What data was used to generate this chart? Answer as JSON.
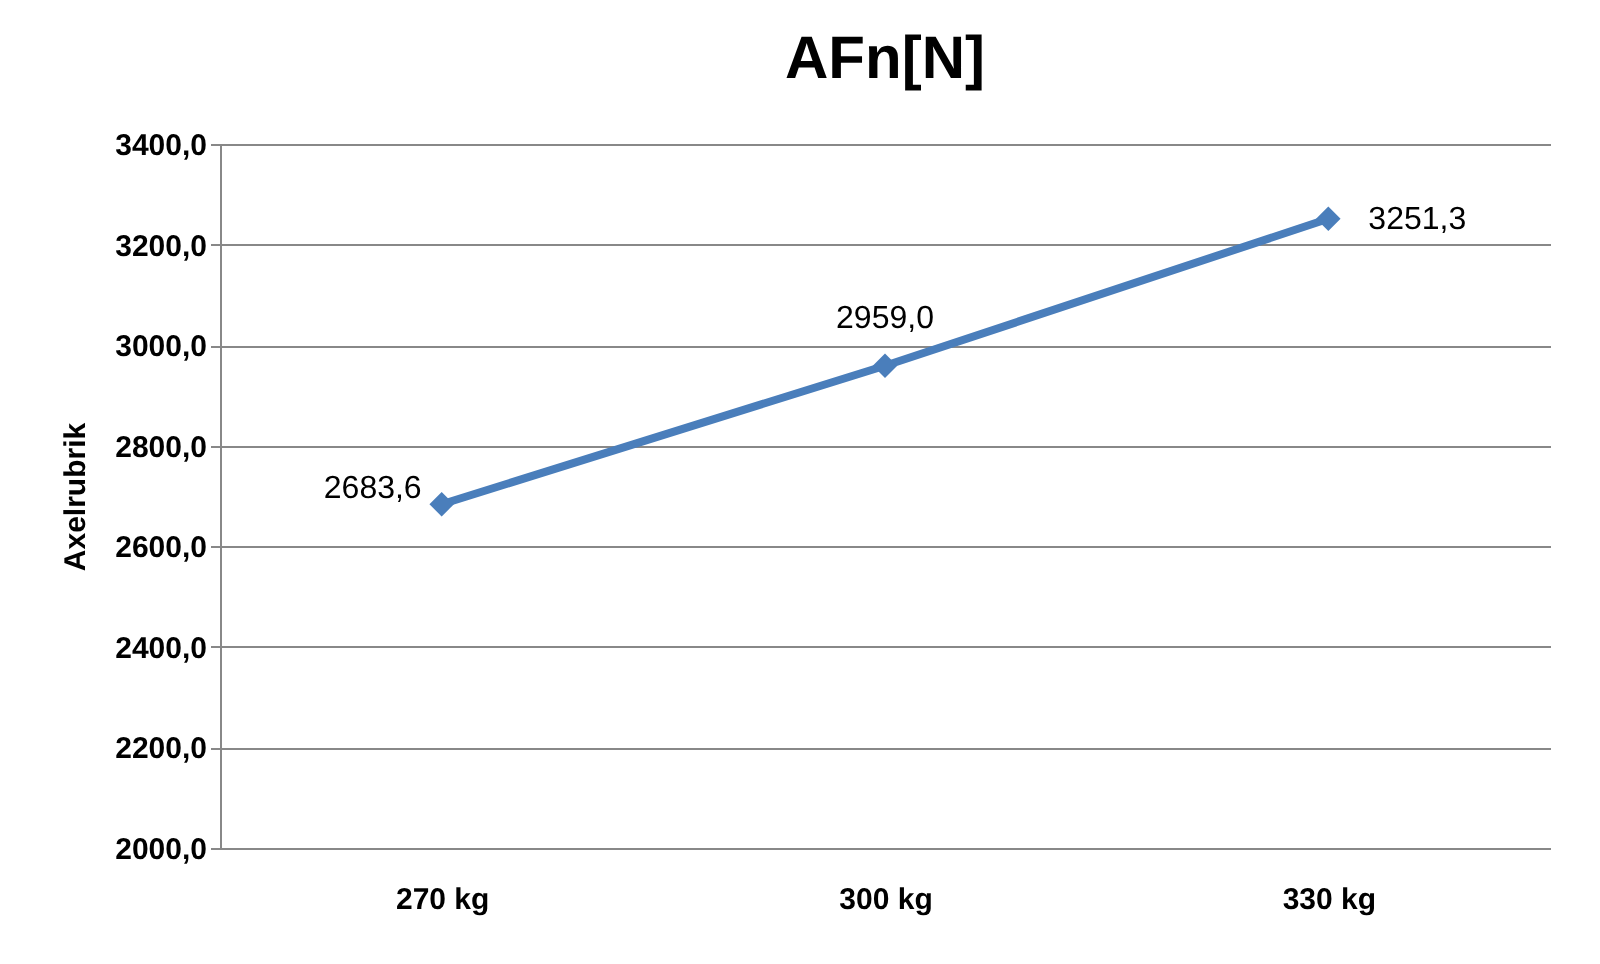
{
  "chart_data": {
    "type": "line",
    "title": "AFn[N]",
    "ylabel": "Axelrubrik",
    "categories": [
      "270 kg",
      "300 kg",
      "330 kg"
    ],
    "series": [
      {
        "color": "#4a7ebb",
        "values": [
          2683.6,
          2959.0,
          3251.3
        ]
      }
    ],
    "value_labels": [
      "2683,6",
      "2959,0",
      "3251,3"
    ],
    "ylim": [
      2000,
      3400
    ],
    "yticks": [
      {
        "value": 2000,
        "label": "2000,0"
      },
      {
        "value": 2200,
        "label": "2200,0"
      },
      {
        "value": 2400,
        "label": "2400,0"
      },
      {
        "value": 2600,
        "label": "2600,0"
      },
      {
        "value": 2800,
        "label": "2800,0"
      },
      {
        "value": 3000,
        "label": "3000,0"
      },
      {
        "value": 3200,
        "label": "3200,0"
      },
      {
        "value": 3400,
        "label": "3400,0"
      }
    ],
    "grid": "y",
    "marker": "diamond",
    "line_style": "solid"
  }
}
